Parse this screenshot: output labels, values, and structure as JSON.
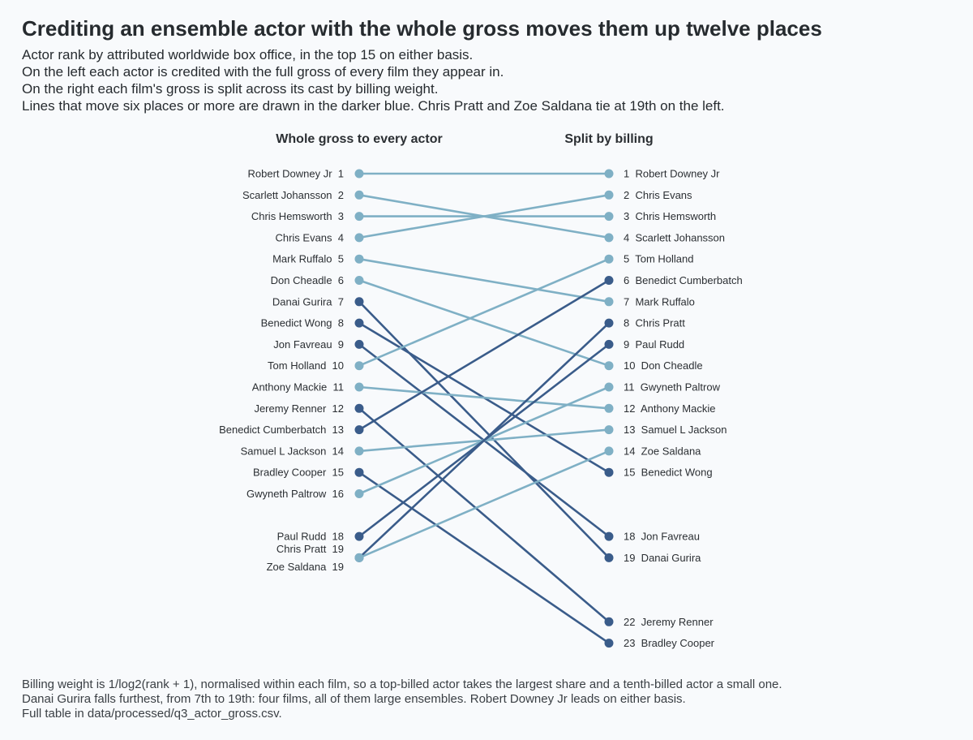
{
  "header": {
    "title": "Crediting an ensemble actor with the whole gross moves them up twelve places",
    "subtitle": [
      "Actor rank by attributed worldwide box office, in the top 15 on either basis.",
      "On the left each actor is credited with the full gross of every film they appear in.",
      "On the right each film's gross is split across its cast by billing weight.",
      "Lines that move six places or more are drawn in the darker blue. Chris Pratt and Zoe Saldana tie at 19th on the left."
    ]
  },
  "footer": {
    "notes": [
      "Billing weight is 1/log2(rank + 1), normalised within each film, so a top-billed actor takes the largest share and a tenth-billed actor a small one.",
      "Danai Gurira falls furthest, from 7th to 19th: four films, all of them large ensembles. Robert Downey Jr leads on either basis.",
      "Full table in data/processed/q3_actor_gross.csv."
    ]
  },
  "colors": {
    "small_move": "#7fb0c5",
    "big_move": "#3a5c8a",
    "text": "#2b2f33"
  },
  "chart_data": {
    "type": "slope",
    "left_header": "Whole gross to every actor",
    "right_header": "Split by billing",
    "highlight_threshold": 6,
    "actors": [
      {
        "name": "Robert Downey Jr",
        "left": 1,
        "right": 1
      },
      {
        "name": "Scarlett Johansson",
        "left": 2,
        "right": 4
      },
      {
        "name": "Chris Hemsworth",
        "left": 3,
        "right": 3
      },
      {
        "name": "Chris Evans",
        "left": 4,
        "right": 2
      },
      {
        "name": "Mark Ruffalo",
        "left": 5,
        "right": 7
      },
      {
        "name": "Don Cheadle",
        "left": 6,
        "right": 10
      },
      {
        "name": "Danai Gurira",
        "left": 7,
        "right": 19
      },
      {
        "name": "Benedict Wong",
        "left": 8,
        "right": 15
      },
      {
        "name": "Jon Favreau",
        "left": 9,
        "right": 18
      },
      {
        "name": "Tom Holland",
        "left": 10,
        "right": 5
      },
      {
        "name": "Anthony Mackie",
        "left": 11,
        "right": 12
      },
      {
        "name": "Jeremy Renner",
        "left": 12,
        "right": 22
      },
      {
        "name": "Benedict Cumberbatch",
        "left": 13,
        "right": 6
      },
      {
        "name": "Samuel L Jackson",
        "left": 14,
        "right": 13
      },
      {
        "name": "Bradley Cooper",
        "left": 15,
        "right": 23
      },
      {
        "name": "Gwyneth Paltrow",
        "left": 16,
        "right": 11
      },
      {
        "name": "Paul Rudd",
        "left": 18,
        "right": 9
      },
      {
        "name": "Chris Pratt",
        "left": 19,
        "right": 8
      },
      {
        "name": "Zoe Saldana",
        "left": 19,
        "right": 14
      }
    ]
  }
}
